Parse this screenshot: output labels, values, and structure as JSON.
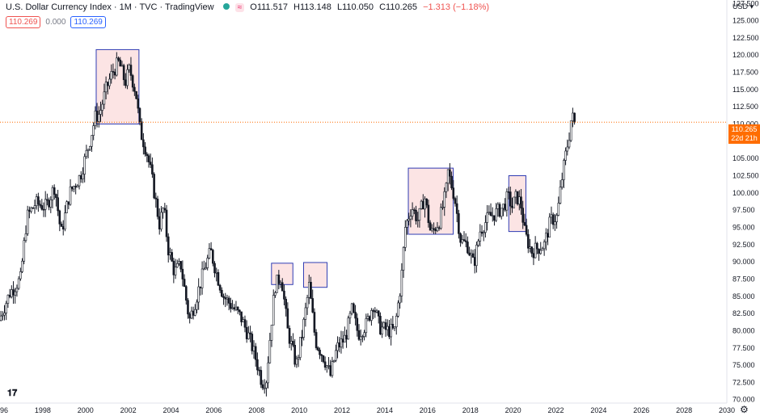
{
  "header": {
    "title": "U.S. Dollar Currency Index · 1M · TVC · TradingView",
    "open": "O111.517",
    "high": "H113.148",
    "low": "L110.050",
    "close": "C110.265",
    "change": "−1.313 (−1.18%)",
    "badge_price": "110.269",
    "badge_spread": "0.000",
    "badge_price2": "110.269"
  },
  "currency": "USD",
  "price_tag": {
    "value": "110.265",
    "countdown": "22d 21h"
  },
  "colors": {
    "candle": "#131722",
    "box_fill": "#fce4e4",
    "box_stroke": "#2f3db4",
    "price_line": "#ff6d00"
  },
  "chart_data": {
    "type": "candlestick",
    "x_ticks": [
      "1996",
      "1998",
      "2000",
      "2002",
      "2004",
      "2006",
      "2008",
      "2010",
      "2012",
      "2014",
      "2016",
      "2018",
      "2020",
      "2022",
      "2024",
      "2026",
      "2028",
      "2030"
    ],
    "y_ticks": [
      "127.500",
      "125.000",
      "122.500",
      "120.000",
      "117.500",
      "115.000",
      "112.500",
      "110.000",
      "107.500",
      "105.000",
      "102.500",
      "100.000",
      "97.500",
      "95.000",
      "92.500",
      "90.000",
      "87.500",
      "85.000",
      "82.500",
      "80.000",
      "77.500",
      "75.000",
      "72.500",
      "70.000"
    ],
    "xlim": [
      1996.0,
      2030.0
    ],
    "ylim": [
      69.5,
      128.0
    ],
    "current_price": 110.265,
    "path": [
      [
        1996.0,
        81.5
      ],
      [
        1996.5,
        85.5
      ],
      [
        1997.0,
        87.5
      ],
      [
        1997.3,
        96.5
      ],
      [
        1997.7,
        98.5
      ],
      [
        1998.2,
        98.0
      ],
      [
        1998.6,
        101.0
      ],
      [
        1998.9,
        94.0
      ],
      [
        1999.3,
        100.0
      ],
      [
        1999.8,
        102.5
      ],
      [
        2000.2,
        107.0
      ],
      [
        2000.5,
        111.0
      ],
      [
        2000.7,
        111.5
      ],
      [
        2001.0,
        115.0
      ],
      [
        2001.3,
        117.5
      ],
      [
        2001.6,
        119.0
      ],
      [
        2001.9,
        116.0
      ],
      [
        2002.1,
        118.0
      ],
      [
        2002.4,
        114.5
      ],
      [
        2002.6,
        109.0
      ],
      [
        2002.9,
        106.0
      ],
      [
        2003.1,
        103.0
      ],
      [
        2003.5,
        95.5
      ],
      [
        2003.7,
        98.0
      ],
      [
        2003.9,
        92.0
      ],
      [
        2004.2,
        88.5
      ],
      [
        2004.5,
        89.5
      ],
      [
        2004.9,
        81.5
      ],
      [
        2005.2,
        84.5
      ],
      [
        2005.6,
        89.0
      ],
      [
        2005.9,
        91.5
      ],
      [
        2006.2,
        88.0
      ],
      [
        2006.5,
        85.0
      ],
      [
        2006.9,
        83.5
      ],
      [
        2007.3,
        82.0
      ],
      [
        2007.7,
        79.0
      ],
      [
        2008.0,
        76.0
      ],
      [
        2008.3,
        72.5
      ],
      [
        2008.5,
        73.0
      ],
      [
        2008.7,
        80.0
      ],
      [
        2008.9,
        86.5
      ],
      [
        2009.2,
        88.0
      ],
      [
        2009.5,
        80.0
      ],
      [
        2009.9,
        75.0
      ],
      [
        2010.2,
        80.0
      ],
      [
        2010.5,
        86.5
      ],
      [
        2010.8,
        78.5
      ],
      [
        2011.2,
        76.0
      ],
      [
        2011.5,
        73.5
      ],
      [
        2011.8,
        77.5
      ],
      [
        2012.2,
        79.0
      ],
      [
        2012.5,
        83.0
      ],
      [
        2012.8,
        79.5
      ],
      [
        2013.2,
        81.0
      ],
      [
        2013.5,
        84.0
      ],
      [
        2013.8,
        80.5
      ],
      [
        2014.2,
        80.0
      ],
      [
        2014.5,
        80.0
      ],
      [
        2014.8,
        87.0
      ],
      [
        2015.0,
        95.0
      ],
      [
        2015.3,
        98.0
      ],
      [
        2015.6,
        96.0
      ],
      [
        2015.9,
        99.5
      ],
      [
        2016.2,
        94.0
      ],
      [
        2016.6,
        96.0
      ],
      [
        2016.9,
        100.0
      ],
      [
        2017.0,
        103.0
      ],
      [
        2017.3,
        99.5
      ],
      [
        2017.6,
        93.0
      ],
      [
        2017.9,
        92.5
      ],
      [
        2018.2,
        89.5
      ],
      [
        2018.5,
        94.5
      ],
      [
        2018.9,
        96.5
      ],
      [
        2019.2,
        97.0
      ],
      [
        2019.6,
        98.0
      ],
      [
        2019.8,
        99.5
      ],
      [
        2020.0,
        98.0
      ],
      [
        2020.2,
        99.5
      ],
      [
        2020.4,
        98.5
      ],
      [
        2020.6,
        94.0
      ],
      [
        2020.9,
        91.5
      ],
      [
        2021.2,
        92.0
      ],
      [
        2021.5,
        92.5
      ],
      [
        2021.8,
        96.0
      ],
      [
        2022.1,
        96.5
      ],
      [
        2022.3,
        101.5
      ],
      [
        2022.5,
        105.5
      ],
      [
        2022.7,
        109.0
      ],
      [
        2022.8,
        112.0
      ],
      [
        2022.85,
        110.3
      ]
    ],
    "boxes": [
      {
        "x0": 2000.5,
        "x1": 2002.5,
        "y0": 110.0,
        "y1": 120.8
      },
      {
        "x0": 2008.7,
        "x1": 2009.7,
        "y0": 86.7,
        "y1": 89.8
      },
      {
        "x0": 2010.2,
        "x1": 2011.3,
        "y0": 86.3,
        "y1": 89.9
      },
      {
        "x0": 2015.1,
        "x1": 2017.2,
        "y0": 94.0,
        "y1": 103.6
      },
      {
        "x0": 2019.8,
        "x1": 2020.6,
        "y0": 94.4,
        "y1": 102.5
      }
    ]
  }
}
